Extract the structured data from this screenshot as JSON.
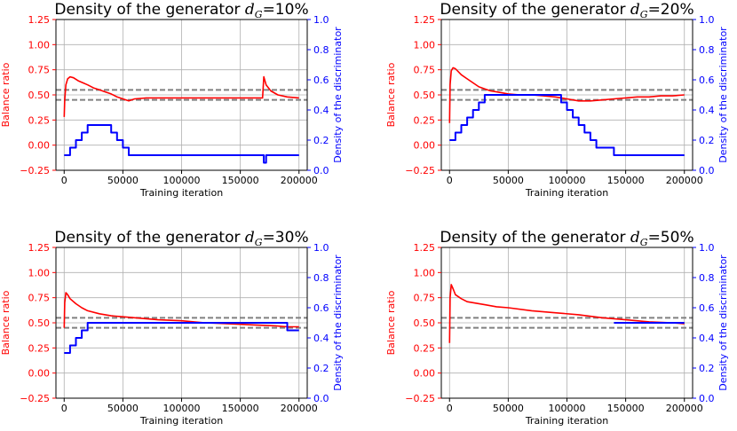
{
  "chart_data": [
    {
      "type": "line",
      "title": "Density of the generator d_G=10%",
      "title_prefix": "Density of the generator ",
      "title_sub": "G",
      "title_value": "=10%",
      "xlabel": "Training iteration",
      "ylabel_left": "Balance ratio",
      "ylabel_right": "Density of the discriminator",
      "xlim": [
        -7000,
        207000
      ],
      "ylim_left": [
        -0.25,
        1.25
      ],
      "ylim_right": [
        0.0,
        1.0
      ],
      "xticks": [
        "0",
        "50000",
        "100000",
        "150000",
        "200000"
      ],
      "xtick_values": [
        0,
        50000,
        100000,
        150000,
        200000
      ],
      "yticks_left": [
        "−0.25",
        "0.00",
        "0.25",
        "0.50",
        "0.75",
        "1.00",
        "1.25"
      ],
      "ytick_left_values": [
        -0.25,
        0,
        0.25,
        0.5,
        0.75,
        1.0,
        1.25
      ],
      "yticks_right": [
        "0.0",
        "0.2",
        "0.4",
        "0.6",
        "0.8",
        "1.0"
      ],
      "ytick_right_values": [
        0,
        0.2,
        0.4,
        0.6,
        0.8,
        1.0
      ],
      "hlines": [
        0.55,
        0.45
      ],
      "grid": true,
      "series": [
        {
          "axis": "left",
          "color": "#ff0000",
          "x": [
            0,
            500,
            1500,
            3000,
            5000,
            8000,
            12000,
            16000,
            20000,
            25000,
            30000,
            35000,
            40000,
            45000,
            50000,
            55000,
            60000,
            70000,
            80000,
            100000,
            120000,
            140000,
            160000,
            169000,
            170000,
            172000,
            176000,
            182000,
            190000,
            200000
          ],
          "y": [
            0.28,
            0.45,
            0.6,
            0.66,
            0.68,
            0.67,
            0.64,
            0.62,
            0.6,
            0.57,
            0.55,
            0.53,
            0.51,
            0.48,
            0.46,
            0.44,
            0.46,
            0.47,
            0.47,
            0.47,
            0.47,
            0.47,
            0.47,
            0.47,
            0.68,
            0.6,
            0.54,
            0.5,
            0.48,
            0.47
          ]
        },
        {
          "axis": "right",
          "color": "#0000ff",
          "step": true,
          "x": [
            0,
            5000,
            10000,
            15000,
            20000,
            40000,
            45000,
            50000,
            55000,
            170000,
            172000,
            175000,
            200000
          ],
          "y": [
            0.1,
            0.15,
            0.2,
            0.25,
            0.3,
            0.25,
            0.2,
            0.15,
            0.1,
            0.05,
            0.1,
            0.1,
            0.1
          ]
        }
      ]
    },
    {
      "type": "line",
      "title": "Density of the generator d_G=20%",
      "title_prefix": "Density of the generator ",
      "title_sub": "G",
      "title_value": "=20%",
      "xlabel": "Training iteration",
      "ylabel_left": "Balance ratio",
      "ylabel_right": "Density of the discriminator",
      "xlim": [
        -7000,
        207000
      ],
      "ylim_left": [
        -0.25,
        1.25
      ],
      "ylim_right": [
        0.0,
        1.0
      ],
      "xticks": [
        "0",
        "50000",
        "100000",
        "150000",
        "200000"
      ],
      "xtick_values": [
        0,
        50000,
        100000,
        150000,
        200000
      ],
      "yticks_left": [
        "−0.25",
        "0.00",
        "0.25",
        "0.50",
        "0.75",
        "1.00",
        "1.25"
      ],
      "ytick_left_values": [
        -0.25,
        0,
        0.25,
        0.5,
        0.75,
        1.0,
        1.25
      ],
      "yticks_right": [
        "0.0",
        "0.2",
        "0.4",
        "0.6",
        "0.8",
        "1.0"
      ],
      "ytick_right_values": [
        0,
        0.2,
        0.4,
        0.6,
        0.8,
        1.0
      ],
      "hlines": [
        0.55,
        0.45
      ],
      "grid": true,
      "series": [
        {
          "axis": "left",
          "color": "#ff0000",
          "x": [
            0,
            500,
            1500,
            3000,
            5000,
            10000,
            15000,
            20000,
            25000,
            30000,
            35000,
            40000,
            50000,
            60000,
            70000,
            80000,
            90000,
            100000,
            110000,
            120000,
            130000,
            140000,
            150000,
            160000,
            170000,
            180000,
            190000,
            200000
          ],
          "y": [
            0.22,
            0.6,
            0.74,
            0.77,
            0.76,
            0.7,
            0.66,
            0.62,
            0.58,
            0.56,
            0.54,
            0.53,
            0.51,
            0.5,
            0.5,
            0.49,
            0.48,
            0.46,
            0.44,
            0.44,
            0.45,
            0.46,
            0.47,
            0.48,
            0.48,
            0.49,
            0.49,
            0.5
          ]
        },
        {
          "axis": "right",
          "color": "#0000ff",
          "step": true,
          "x": [
            0,
            5000,
            10000,
            15000,
            20000,
            25000,
            30000,
            95000,
            100000,
            105000,
            110000,
            115000,
            120000,
            125000,
            140000,
            200000
          ],
          "y": [
            0.2,
            0.25,
            0.3,
            0.35,
            0.4,
            0.45,
            0.5,
            0.45,
            0.4,
            0.35,
            0.3,
            0.25,
            0.2,
            0.15,
            0.1,
            0.1
          ]
        }
      ]
    },
    {
      "type": "line",
      "title": "Density of the generator d_G=30%",
      "title_prefix": "Density of the generator ",
      "title_sub": "G",
      "title_value": "=30%",
      "xlabel": "Training iteration",
      "ylabel_left": "Balance ratio",
      "ylabel_right": "Density of the discriminator",
      "xlim": [
        -7000,
        207000
      ],
      "ylim_left": [
        -0.25,
        1.25
      ],
      "ylim_right": [
        0.0,
        1.0
      ],
      "xticks": [
        "0",
        "50000",
        "100000",
        "150000",
        "200000"
      ],
      "xtick_values": [
        0,
        50000,
        100000,
        150000,
        200000
      ],
      "yticks_left": [
        "−0.25",
        "0.00",
        "0.25",
        "0.50",
        "0.75",
        "1.00",
        "1.25"
      ],
      "ytick_left_values": [
        -0.25,
        0,
        0.25,
        0.5,
        0.75,
        1.0,
        1.25
      ],
      "yticks_right": [
        "0.0",
        "0.2",
        "0.4",
        "0.6",
        "0.8",
        "1.0"
      ],
      "ytick_right_values": [
        0,
        0.2,
        0.4,
        0.6,
        0.8,
        1.0
      ],
      "hlines": [
        0.55,
        0.45
      ],
      "grid": true,
      "series": [
        {
          "axis": "left",
          "color": "#ff0000",
          "x": [
            0,
            500,
            1500,
            3000,
            5000,
            10000,
            15000,
            20000,
            30000,
            40000,
            50000,
            60000,
            80000,
            100000,
            120000,
            140000,
            160000,
            180000,
            190000,
            200000
          ],
          "y": [
            0.45,
            0.7,
            0.8,
            0.78,
            0.74,
            0.69,
            0.65,
            0.62,
            0.59,
            0.57,
            0.56,
            0.55,
            0.53,
            0.52,
            0.5,
            0.49,
            0.48,
            0.47,
            0.46,
            0.46
          ]
        },
        {
          "axis": "right",
          "color": "#0000ff",
          "step": true,
          "x": [
            0,
            5000,
            10000,
            15000,
            20000,
            190000,
            200000
          ],
          "y": [
            0.3,
            0.35,
            0.4,
            0.45,
            0.5,
            0.45,
            0.45
          ]
        }
      ]
    },
    {
      "type": "line",
      "title": "Density of the generator d_G=50%",
      "title_prefix": "Density of the generator ",
      "title_sub": "G",
      "title_value": "=50%",
      "xlabel": "Training iteration",
      "ylabel_left": "Balance ratio",
      "ylabel_right": "Density of the discriminator",
      "xlim": [
        -7000,
        207000
      ],
      "ylim_left": [
        -0.25,
        1.25
      ],
      "ylim_right": [
        0.0,
        1.0
      ],
      "xticks": [
        "0",
        "50000",
        "100000",
        "150000",
        "200000"
      ],
      "xtick_values": [
        0,
        50000,
        100000,
        150000,
        200000
      ],
      "yticks_left": [
        "−0.25",
        "0.00",
        "0.25",
        "0.50",
        "0.75",
        "1.00",
        "1.25"
      ],
      "ytick_left_values": [
        -0.25,
        0,
        0.25,
        0.5,
        0.75,
        1.0,
        1.25
      ],
      "yticks_right": [
        "0.0",
        "0.2",
        "0.4",
        "0.6",
        "0.8",
        "1.0"
      ],
      "ytick_right_values": [
        0,
        0.2,
        0.4,
        0.6,
        0.8,
        1.0
      ],
      "hlines": [
        0.55,
        0.45
      ],
      "grid": true,
      "series": [
        {
          "axis": "left",
          "color": "#ff0000",
          "x": [
            0,
            500,
            1500,
            3000,
            5000,
            10000,
            15000,
            20000,
            30000,
            40000,
            50000,
            70000,
            90000,
            110000,
            130000,
            150000,
            170000,
            190000,
            200000
          ],
          "y": [
            0.3,
            0.75,
            0.88,
            0.84,
            0.78,
            0.74,
            0.71,
            0.7,
            0.68,
            0.66,
            0.65,
            0.62,
            0.6,
            0.58,
            0.55,
            0.53,
            0.51,
            0.5,
            0.49
          ]
        },
        {
          "axis": "right",
          "color": "#0000ff",
          "step": true,
          "x": [
            140000,
            200000
          ],
          "y": [
            0.5,
            0.5
          ]
        }
      ]
    }
  ]
}
